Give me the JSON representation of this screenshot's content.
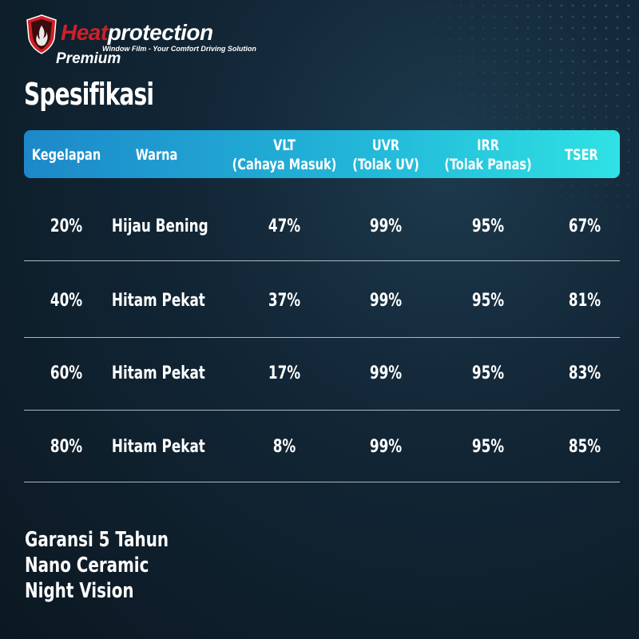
{
  "brand": {
    "name_part1": "Heat",
    "name_part2": "protection",
    "tagline": "Window Film - Your Comfort Driving Solution",
    "edition": "Premium",
    "colors": {
      "red": "#d21f26",
      "white": "#ffffff"
    }
  },
  "page": {
    "title": "Spesifikasi"
  },
  "table": {
    "headers": [
      {
        "line1": "Kegelapan",
        "line2": ""
      },
      {
        "line1": "Warna",
        "line2": ""
      },
      {
        "line1": "VLT",
        "line2": "(Cahaya Masuk)"
      },
      {
        "line1": "UVR",
        "line2": "(Tolak UV)"
      },
      {
        "line1": "IRR",
        "line2": "(Tolak Panas)"
      },
      {
        "line1": "TSER",
        "line2": ""
      }
    ],
    "rows": [
      [
        "20%",
        "Hijau Bening",
        "47%",
        "99%",
        "95%",
        "67%"
      ],
      [
        "40%",
        "Hitam Pekat",
        "37%",
        "99%",
        "95%",
        "81%"
      ],
      [
        "60%",
        "Hitam Pekat",
        "17%",
        "99%",
        "95%",
        "83%"
      ],
      [
        "80%",
        "Hitam Pekat",
        "8%",
        "99%",
        "95%",
        "85%"
      ]
    ],
    "header_gradient": [
      "#1d88c9",
      "#22b5d8",
      "#2fe2e4"
    ]
  },
  "features": [
    "Garansi 5 Tahun",
    "Nano Ceramic",
    "Night Vision"
  ]
}
